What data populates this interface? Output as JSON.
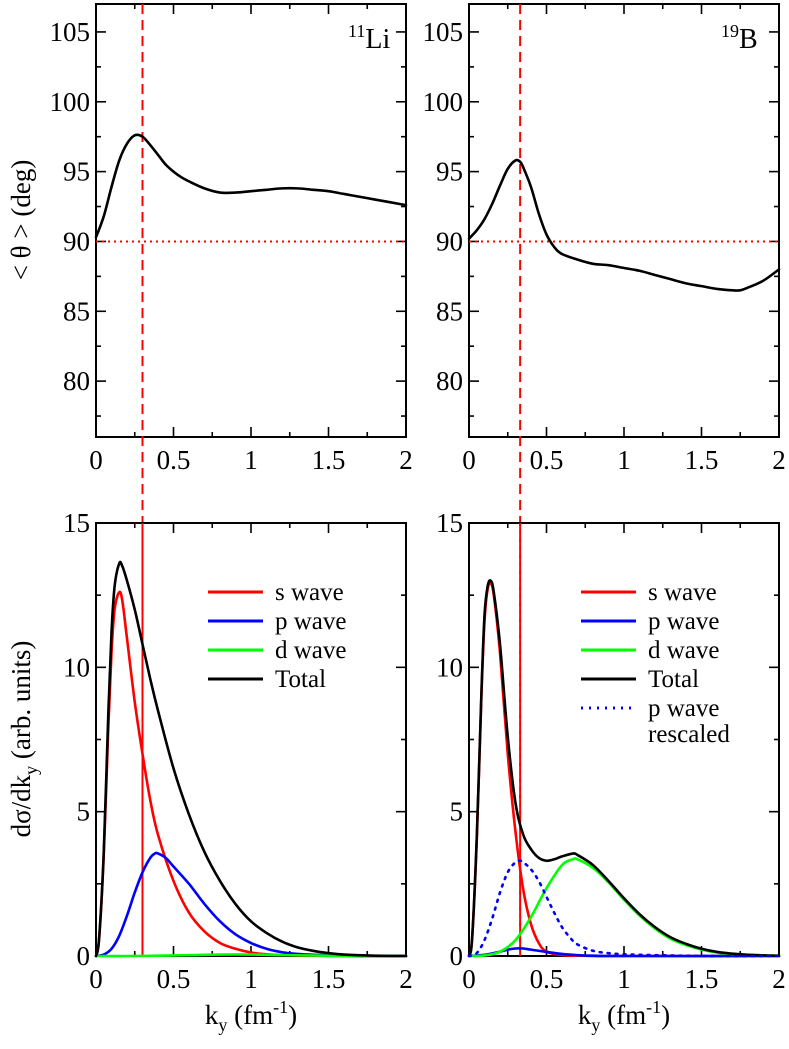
{
  "chart_data": [
    {
      "id": "li11_angle",
      "type": "line",
      "nucleus": {
        "superscript": "11",
        "symbol": "Li"
      },
      "xlabel": "k_y (fm^-1)",
      "ylabel": "< θ > (deg)",
      "xlim": [
        0,
        2
      ],
      "ylim": [
        76,
        107
      ],
      "xticks": [
        0,
        0.5,
        1,
        1.5,
        2
      ],
      "xtick_labels": [
        "0",
        "0.5",
        "1",
        "1.5",
        "2"
      ],
      "yticks": [
        80,
        85,
        90,
        95,
        100,
        105
      ],
      "ytick_labels": [
        "80",
        "85",
        "90",
        "95",
        "100",
        "105"
      ],
      "reference_lines": {
        "horizontal_dotted": 90,
        "vertical_dashed": 0.3
      },
      "series": [
        {
          "name": "Total",
          "color": "#000000",
          "style": "solid",
          "x": [
            0,
            0.05,
            0.1,
            0.15,
            0.2,
            0.25,
            0.3,
            0.35,
            0.4,
            0.45,
            0.5,
            0.55,
            0.6,
            0.7,
            0.8,
            0.9,
            1.0,
            1.1,
            1.2,
            1.3,
            1.4,
            1.5,
            1.6,
            1.7,
            1.8,
            1.9,
            2.0
          ],
          "y": [
            90.3,
            91.8,
            93.9,
            95.8,
            97.0,
            97.6,
            97.5,
            96.9,
            96.2,
            95.5,
            95.0,
            94.6,
            94.3,
            93.8,
            93.5,
            93.5,
            93.6,
            93.7,
            93.8,
            93.8,
            93.7,
            93.6,
            93.4,
            93.2,
            93.0,
            92.8,
            92.6
          ]
        }
      ]
    },
    {
      "id": "b19_angle",
      "type": "line",
      "nucleus": {
        "superscript": "19",
        "symbol": "B"
      },
      "xlabel": "k_y (fm^-1)",
      "ylabel": "< θ > (deg)",
      "xlim": [
        0,
        2
      ],
      "ylim": [
        76,
        107
      ],
      "xticks": [
        0,
        0.5,
        1,
        1.5,
        2
      ],
      "xtick_labels": [
        "0",
        "0.5",
        "1",
        "1.5",
        "2"
      ],
      "yticks": [
        80,
        85,
        90,
        95,
        100,
        105
      ],
      "ytick_labels": [
        "80",
        "85",
        "90",
        "95",
        "100",
        "105"
      ],
      "reference_lines": {
        "horizontal_dotted": 90,
        "vertical_dashed": 0.33
      },
      "series": [
        {
          "name": "Total",
          "color": "#000000",
          "style": "solid",
          "x": [
            0,
            0.05,
            0.1,
            0.15,
            0.2,
            0.25,
            0.3,
            0.33,
            0.35,
            0.4,
            0.45,
            0.5,
            0.55,
            0.6,
            0.7,
            0.8,
            0.9,
            1.0,
            1.1,
            1.2,
            1.3,
            1.4,
            1.5,
            1.6,
            1.7,
            1.75,
            1.8,
            1.9,
            2.0
          ],
          "y": [
            90.2,
            90.8,
            91.6,
            92.7,
            94.0,
            95.2,
            95.8,
            95.7,
            95.3,
            93.9,
            92.0,
            90.5,
            89.6,
            89.1,
            88.7,
            88.4,
            88.3,
            88.1,
            87.9,
            87.6,
            87.3,
            87.0,
            86.8,
            86.6,
            86.5,
            86.5,
            86.7,
            87.2,
            88.0
          ]
        }
      ]
    },
    {
      "id": "li11_cross_section",
      "type": "line",
      "xlabel": "k_y (fm^-1)",
      "ylabel": "dσ/dk_y (arb. units)",
      "xlim": [
        0,
        2
      ],
      "ylim": [
        0,
        15
      ],
      "xticks": [
        0,
        0.5,
        1,
        1.5,
        2
      ],
      "xtick_labels": [
        "0",
        "0.5",
        "1",
        "1.5",
        "2"
      ],
      "yticks": [
        0,
        5,
        10,
        15
      ],
      "ytick_labels": [
        "0",
        "5",
        "10",
        "15"
      ],
      "reference_lines": {
        "vertical_dashed": 0.3
      },
      "legend": {
        "placement": "top-right",
        "entries": [
          {
            "label": "s wave",
            "color": "#ff0000",
            "style": "solid"
          },
          {
            "label": "p wave",
            "color": "#0000ff",
            "style": "solid"
          },
          {
            "label": "d wave",
            "color": "#00ff00",
            "style": "solid"
          },
          {
            "label": "Total",
            "color": "#000000",
            "style": "solid"
          }
        ]
      },
      "series": [
        {
          "name": "s wave",
          "color": "#ff0000",
          "style": "solid",
          "x": [
            0,
            0.02,
            0.05,
            0.08,
            0.1,
            0.12,
            0.15,
            0.17,
            0.2,
            0.25,
            0.3,
            0.35,
            0.4,
            0.5,
            0.6,
            0.7,
            0.8,
            0.9,
            1.0,
            1.1,
            1.2,
            1.4,
            1.6,
            2.0
          ],
          "y": [
            0,
            0.6,
            3.5,
            8.0,
            10.5,
            12.0,
            12.6,
            12.3,
            11.0,
            8.8,
            7.0,
            5.4,
            4.2,
            2.6,
            1.5,
            0.85,
            0.45,
            0.25,
            0.12,
            0.06,
            0.03,
            0.01,
            0,
            0
          ]
        },
        {
          "name": "p wave",
          "color": "#0000ff",
          "style": "solid",
          "x": [
            0,
            0.05,
            0.1,
            0.15,
            0.2,
            0.25,
            0.3,
            0.35,
            0.38,
            0.4,
            0.45,
            0.5,
            0.6,
            0.7,
            0.8,
            0.9,
            1.0,
            1.1,
            1.2,
            1.3,
            1.4,
            1.6,
            1.8,
            2.0
          ],
          "y": [
            0,
            0.05,
            0.25,
            0.7,
            1.4,
            2.2,
            2.9,
            3.4,
            3.55,
            3.55,
            3.4,
            3.1,
            2.5,
            1.8,
            1.2,
            0.75,
            0.45,
            0.25,
            0.13,
            0.07,
            0.04,
            0.01,
            0,
            0
          ]
        },
        {
          "name": "d wave",
          "color": "#00ff00",
          "style": "solid",
          "x": [
            0,
            0.2,
            0.4,
            0.6,
            0.8,
            1.0,
            1.2,
            1.5,
            2.0
          ],
          "y": [
            0,
            0,
            0.01,
            0.03,
            0.05,
            0.05,
            0.03,
            0.01,
            0
          ]
        },
        {
          "name": "Total",
          "color": "#000000",
          "style": "solid",
          "x": [
            0,
            0.02,
            0.05,
            0.08,
            0.1,
            0.12,
            0.15,
            0.17,
            0.2,
            0.25,
            0.3,
            0.35,
            0.4,
            0.5,
            0.6,
            0.7,
            0.8,
            0.9,
            1.0,
            1.1,
            1.2,
            1.3,
            1.4,
            1.5,
            1.6,
            1.8,
            2.0
          ],
          "y": [
            0,
            0.6,
            3.6,
            8.5,
            11.2,
            12.8,
            13.6,
            13.5,
            13.0,
            12.0,
            10.8,
            9.6,
            8.5,
            6.5,
            4.9,
            3.6,
            2.6,
            1.8,
            1.2,
            0.8,
            0.5,
            0.3,
            0.18,
            0.1,
            0.05,
            0.01,
            0
          ]
        }
      ]
    },
    {
      "id": "b19_cross_section",
      "type": "line",
      "xlabel": "k_y (fm^-1)",
      "ylabel": "dσ/dk_y (arb. units)",
      "xlim": [
        0,
        2
      ],
      "ylim": [
        0,
        15
      ],
      "xticks": [
        0,
        0.5,
        1,
        1.5,
        2
      ],
      "xtick_labels": [
        "0",
        "0.5",
        "1",
        "1.5",
        "2"
      ],
      "yticks": [
        0,
        5,
        10,
        15
      ],
      "ytick_labels": [
        "0",
        "5",
        "10",
        "15"
      ],
      "reference_lines": {
        "vertical_dashed": 0.33
      },
      "legend": {
        "placement": "top-right",
        "entries": [
          {
            "label": "s wave",
            "color": "#ff0000",
            "style": "solid"
          },
          {
            "label": "p wave",
            "color": "#0000ff",
            "style": "solid"
          },
          {
            "label": "d wave",
            "color": "#00ff00",
            "style": "solid"
          },
          {
            "label": "Total",
            "color": "#000000",
            "style": "solid"
          },
          {
            "label": "p wave",
            "label2": "rescaled",
            "color": "#0000ff",
            "style": "dotted"
          }
        ]
      },
      "series": [
        {
          "name": "s wave",
          "color": "#ff0000",
          "style": "solid",
          "x": [
            0,
            0.02,
            0.05,
            0.08,
            0.1,
            0.12,
            0.14,
            0.16,
            0.2,
            0.25,
            0.3,
            0.35,
            0.4,
            0.45,
            0.5,
            0.6,
            0.7,
            0.8,
            1.0,
            2.0
          ],
          "y": [
            0,
            0.6,
            4.0,
            9.0,
            11.6,
            12.7,
            12.9,
            12.5,
            10.5,
            7.0,
            4.3,
            2.3,
            1.1,
            0.45,
            0.15,
            0.03,
            0.01,
            0,
            0,
            0
          ]
        },
        {
          "name": "p wave",
          "color": "#0000ff",
          "style": "solid",
          "x": [
            0,
            0.1,
            0.2,
            0.25,
            0.3,
            0.35,
            0.4,
            0.5,
            0.6,
            0.7,
            0.8,
            1.0,
            2.0
          ],
          "y": [
            0,
            0.04,
            0.15,
            0.22,
            0.26,
            0.26,
            0.22,
            0.14,
            0.07,
            0.03,
            0.01,
            0,
            0
          ]
        },
        {
          "name": "d wave",
          "color": "#00ff00",
          "style": "solid",
          "x": [
            0,
            0.1,
            0.2,
            0.3,
            0.4,
            0.5,
            0.6,
            0.67,
            0.7,
            0.8,
            0.9,
            1.0,
            1.1,
            1.2,
            1.3,
            1.4,
            1.5,
            1.6,
            1.7,
            1.8,
            1.9,
            2.0
          ],
          "y": [
            0,
            0.02,
            0.15,
            0.55,
            1.35,
            2.35,
            3.15,
            3.35,
            3.35,
            3.05,
            2.55,
            1.95,
            1.4,
            0.95,
            0.6,
            0.38,
            0.22,
            0.12,
            0.07,
            0.04,
            0.02,
            0.01
          ]
        },
        {
          "name": "Total",
          "color": "#000000",
          "style": "solid",
          "x": [
            0,
            0.02,
            0.05,
            0.08,
            0.1,
            0.12,
            0.14,
            0.16,
            0.2,
            0.25,
            0.3,
            0.35,
            0.4,
            0.45,
            0.5,
            0.55,
            0.6,
            0.67,
            0.7,
            0.8,
            0.9,
            1.0,
            1.1,
            1.2,
            1.3,
            1.4,
            1.5,
            1.6,
            1.7,
            1.8,
            1.9,
            2.0
          ],
          "y": [
            0,
            0.6,
            4.1,
            9.1,
            11.8,
            12.8,
            13.0,
            12.6,
            10.8,
            7.6,
            5.3,
            4.2,
            3.7,
            3.4,
            3.3,
            3.35,
            3.45,
            3.55,
            3.5,
            3.15,
            2.6,
            2.0,
            1.45,
            1.0,
            0.65,
            0.42,
            0.25,
            0.14,
            0.08,
            0.04,
            0.02,
            0.01
          ]
        },
        {
          "name": "p wave rescaled",
          "color": "#0000ff",
          "style": "dotted",
          "x": [
            0,
            0.05,
            0.1,
            0.15,
            0.2,
            0.25,
            0.3,
            0.33,
            0.35,
            0.4,
            0.45,
            0.5,
            0.55,
            0.6,
            0.65,
            0.7,
            0.8,
            0.9,
            1.0,
            1.2,
            1.4,
            1.6,
            2.0
          ],
          "y": [
            0,
            0.1,
            0.55,
            1.3,
            2.2,
            2.9,
            3.25,
            3.3,
            3.25,
            3.0,
            2.6,
            2.05,
            1.5,
            1.0,
            0.65,
            0.4,
            0.18,
            0.1,
            0.06,
            0.03,
            0.01,
            0,
            0
          ]
        }
      ]
    }
  ]
}
